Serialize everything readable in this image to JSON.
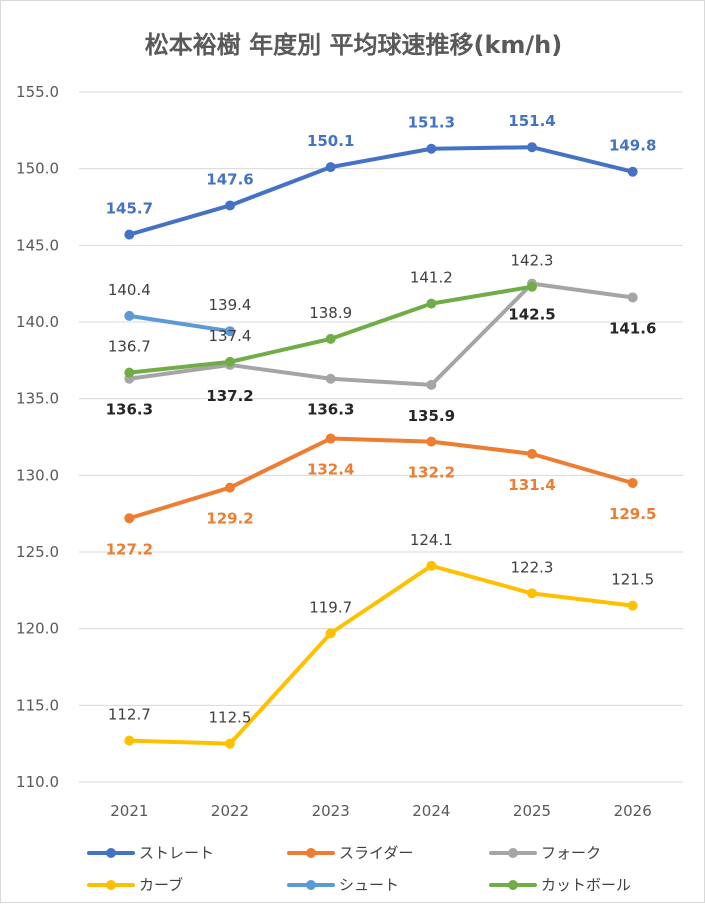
{
  "chart_data": {
    "type": "line",
    "title": "松本裕樹 年度別 平均球速推移(km/h)",
    "xlabel": "",
    "ylabel": "",
    "categories": [
      "2021",
      "2022",
      "2023",
      "2024",
      "2025",
      "2026"
    ],
    "ylim": [
      110.0,
      155.0
    ],
    "yticks": [
      "110.0",
      "115.0",
      "120.0",
      "125.0",
      "130.0",
      "135.0",
      "140.0",
      "145.0",
      "150.0",
      "155.0"
    ],
    "grid": true,
    "legend_position": "bottom",
    "series": [
      {
        "name": "ストレート",
        "color": "#4472c4",
        "label_color": "#4472c4",
        "label_bold": true,
        "values": [
          145.7,
          147.6,
          150.1,
          151.3,
          151.4,
          149.8
        ],
        "labels": [
          "145.7",
          "147.6",
          "150.1",
          "151.3",
          "151.4",
          "149.8"
        ],
        "label_pos": [
          "above",
          "above",
          "above",
          "above",
          "above",
          "above"
        ]
      },
      {
        "name": "スライダー",
        "color": "#ed7d31",
        "label_color": "#ed7d31",
        "label_bold": true,
        "values": [
          127.2,
          129.2,
          132.4,
          132.2,
          131.4,
          129.5
        ],
        "labels": [
          "127.2",
          "129.2",
          "132.4",
          "132.2",
          "131.4",
          "129.5"
        ],
        "label_pos": [
          "below",
          "below",
          "below",
          "below",
          "below",
          "below"
        ]
      },
      {
        "name": "フォーク",
        "color": "#a5a5a5",
        "label_color": "#262626",
        "label_bold": true,
        "values": [
          136.3,
          137.2,
          136.3,
          135.9,
          142.5,
          141.6
        ],
        "labels": [
          "136.3",
          "137.2",
          "136.3",
          "135.9",
          "142.5",
          "141.6"
        ],
        "label_pos": [
          "below",
          "below",
          "below",
          "below",
          "below",
          "below"
        ]
      },
      {
        "name": "カーブ",
        "color": "#ffc000",
        "label_color": "#404040",
        "label_bold": false,
        "values": [
          112.7,
          112.5,
          119.7,
          124.1,
          122.3,
          121.5
        ],
        "labels": [
          "112.7",
          "112.5",
          "119.7",
          "124.1",
          "122.3",
          "121.5"
        ],
        "label_pos": [
          "above",
          "above",
          "above",
          "above",
          "above",
          "above"
        ]
      },
      {
        "name": "シュート",
        "color": "#5b9bd5",
        "label_color": "#404040",
        "label_bold": false,
        "values": [
          140.4,
          139.4,
          null,
          null,
          null,
          null
        ],
        "labels": [
          "140.4",
          "139.4",
          null,
          null,
          null,
          null
        ],
        "label_pos": [
          "above",
          "above",
          null,
          null,
          null,
          null
        ]
      },
      {
        "name": "カットボール",
        "color": "#70ad47",
        "label_color": "#404040",
        "label_bold": false,
        "values": [
          136.7,
          137.4,
          138.9,
          141.2,
          142.3,
          null
        ],
        "labels": [
          "136.7",
          "137.4",
          "138.9",
          "141.2",
          "142.3",
          null
        ],
        "label_pos": [
          "above",
          "above",
          "above",
          "above",
          "above",
          null
        ]
      }
    ]
  }
}
